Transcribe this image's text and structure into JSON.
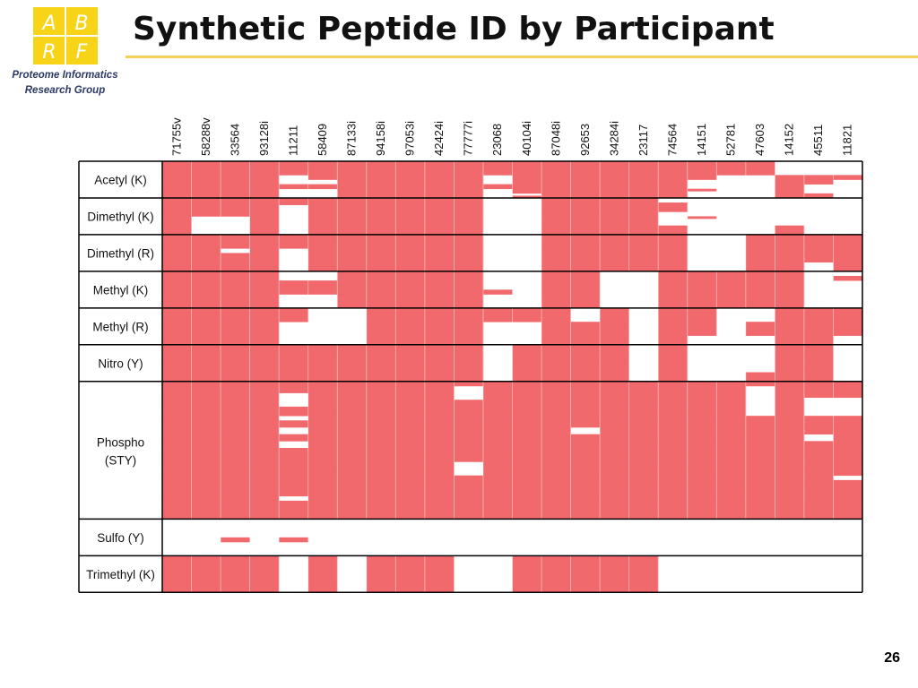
{
  "header": {
    "title": "Synthetic Peptide ID by Participant",
    "group_name": "Proteome Informatics Research Group",
    "logo_letters": [
      "A",
      "B",
      "R",
      "F"
    ],
    "logo_color": "#f7d417",
    "page_number": "26"
  },
  "chart_data": {
    "type": "heatmap",
    "title": "Synthetic Peptide ID by Participant",
    "cell_color": "#f1696c",
    "participants": [
      "71755v",
      "58288v",
      "33564",
      "93128i",
      "11211",
      "58409",
      "87133i",
      "94158i",
      "97053i",
      "42424i",
      "77777i",
      "23068",
      "40104i",
      "87048i",
      "92653",
      "34284i",
      "23117",
      "74564",
      "14151",
      "52781",
      "47603",
      "14152",
      "45511",
      "11821"
    ],
    "categories": [
      {
        "label": "Acetyl (K)",
        "rows": [
          "111111111111111111111000",
          "111111111111111111111000",
          "111111111111111111111000",
          "111111111111111111111000",
          "111111111111111111111000",
          "111111111111111111111000",
          "111101111110111111100111",
          "111101111110111111100111",
          "111100111110111111000110",
          "111100111110111111000110",
          "111111111111111111000100",
          "111111111111111111000100",
          "111100111110111111100100",
          "111100111110111111000100",
          "111100111110011111000110",
          "111100111110111111000110"
        ]
      },
      {
        "label": "Dimethyl (K)",
        "rows": [
          "111111111110011110000000",
          "111111111110011110000000",
          "111111111110011111000000",
          "111101111110011111000000",
          "111101111110011111000000",
          "111101111110011111000000",
          "111101111110011110000000",
          "111101111110011110000000",
          "100101111110011110100000",
          "100101111110011110000000",
          "100101111110011110000000",
          "100101111110011110000000",
          "100101111110011111000100",
          "100101111110011111000100",
          "100101111110011111000100",
          "100101111110011111000100"
        ]
      },
      {
        "label": "Dimethyl (R)",
        "rows": [
          "111111111110011111001111",
          "111111111110011111001111",
          "111111111110011111001111",
          "111111111110011111001111",
          "111111111110011111001111",
          "111111111110011111001111",
          "110101111110011111001111",
          "110101111110011111001111",
          "111101111110011111001111",
          "111101111110011111001111",
          "111101111110011111001111",
          "111101111110011111001111",
          "111101111110011111001101",
          "111101111110011111001101",
          "111101111110011111001101",
          "111101111110011111001101"
        ]
      },
      {
        "label": "Methyl (K)",
        "rows": [
          "111100111110011001111100",
          "111100111110011001111100",
          "111100111110011001111101",
          "111100111110011001111101",
          "111111111110011001111100",
          "111111111110011001111100",
          "111111111110011001111100",
          "111111111110011001111100",
          "111111111111011001111100",
          "111111111111011001111100",
          "111100111110011001111100",
          "111100111110011001111100",
          "111100111110011001111100",
          "111100111110011001111100",
          "111100111110011001111100",
          "111100111110011001111100"
        ]
      },
      {
        "label": "Methyl (R)",
        "rows": [
          "111110011111110101100111",
          "111110011111110101100111",
          "111110011111110101100111",
          "111110011111110101100111",
          "111110011111110101100111",
          "111110011111110101100111",
          "111100011110011101101111",
          "111100011110011101101111",
          "111100011110011101101111",
          "111100011110011101101111",
          "111100011110011101101111",
          "111100011110011101101111",
          "111100011110011101000110",
          "111100011110011101000110",
          "111100011110011101000110",
          "111100011110011101000110"
        ]
      },
      {
        "label": "Nitro (Y)",
        "rows": [
          "111111111110111101000110",
          "111111111110111101000110",
          "111111111110111101000110",
          "111111111110111101000110",
          "111111111110111101000110",
          "111111111110111101000110",
          "111111111110111101000110",
          "111111111110111101000110",
          "111111111110111101000110",
          "111111111110111101000110",
          "111111111110111101000110",
          "111111111110111101000110",
          "111111111110111101001110",
          "111111111110111101001110",
          "111111111110111101001110",
          "111111111110111101001110"
        ]
      },
      {
        "label": "Phospho (STY)",
        "rows": [
          "111111111111111111111111",
          "111111111111111111111111",
          "111111111101111111110111",
          "111111111101111111110111",
          "111111111101111111110111",
          "111101111101111111110111",
          "111101111101111111110111",
          "111101111101111111110100",
          "111101111111111111110100",
          "111101111111111111110100",
          "111101111111111111110100",
          "111111111111111111110100",
          "111111111111111111110100",
          "111111111111111111110100",
          "111111111111111111110100",
          "111101111111111111111111",
          "111101111111111111111111",
          "111111111111111111111111",
          "111111111111111111111111",
          "111111111111111111111111",
          "111101111111110111111111",
          "111101111111110111111111",
          "111101111111110111111111",
          "111111111111111111111101",
          "111111111111111111111101",
          "111111111111111111111101",
          "111101111111111111111111",
          "111101111111111111111111",
          "111101111111111111111111",
          "111111111111111111111111",
          "111111111111111111111111",
          "111111111111111111111111",
          "111111111111111111111111",
          "111111111111111111111111",
          "111111111111111111111111",
          "111111111101111111111111",
          "111111111101111111111111",
          "111111111101111111111111",
          "111111111101111111111111",
          "111111111101111111111111",
          "111111111101111111111111",
          "111111111111111111111110",
          "111111111111111111111110",
          "111111111111111111111111",
          "111111111111111111111111",
          "111111111111111111111111",
          "111111111111111111111111",
          "111111111111111111111111",
          "111111111111111111111111",
          "111111111111111111111111",
          "111101111111111111111111",
          "111101111111111111111111",
          "111111111111111111111111",
          "111111111111111111111111",
          "111111111111111111111111",
          "111111111111111111111111",
          "111111111111111111111111",
          "111111111111111111111111",
          "111111111111111111111111",
          "111111111111111111111111"
        ]
      },
      {
        "label": "Sulfo (Y)",
        "rows": [
          "000000000000000000000000",
          "000000000000000000000000",
          "000000000000000000000000",
          "000000000000000000000000",
          "000000000000000000000000",
          "000000000000000000000000",
          "000000000000000000000000",
          "000000000000000000000000",
          "001010000000000000000000",
          "001010000000000000000000",
          "000000000000000000000000",
          "000000000000000000000000",
          "000000000000000000000000",
          "000000000000000000000000",
          "000000000000000000000000",
          "000000000000000000000000"
        ]
      },
      {
        "label": "Trimethyl (K)",
        "rows": [
          "111101011100111110000000",
          "111101011100111110000000",
          "111101011100111110000000",
          "111101011100111110000000",
          "111101011100111110000000",
          "111101011100111110000000",
          "111101011100111110000000",
          "111101011100111110000000",
          "111101011100111110000000",
          "111101011100111110000000",
          "111101011100111110000000",
          "111101011100111110000000",
          "111101011100111110000000",
          "111101011100111110000000",
          "111101011100111110000000",
          "111101011100111110000000"
        ]
      }
    ]
  }
}
